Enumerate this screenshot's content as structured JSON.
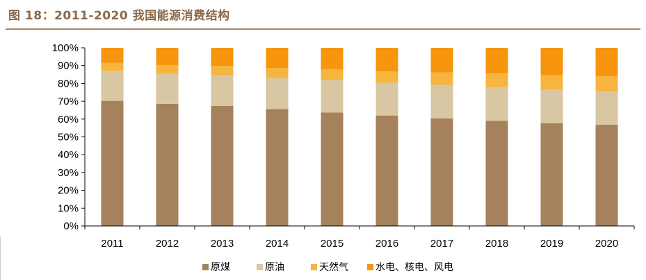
{
  "title": "图 18：2011-2020 我国能源消费结构",
  "chart_data": {
    "type": "bar",
    "stacked": true,
    "title": "图 18：2011-2020 我国能源消费结构",
    "xlabel": "",
    "ylabel": "",
    "ylim": [
      0,
      100
    ],
    "yticks": [
      "0%",
      "10%",
      "20%",
      "30%",
      "40%",
      "50%",
      "60%",
      "70%",
      "80%",
      "90%",
      "100%"
    ],
    "categories": [
      "2011",
      "2012",
      "2013",
      "2014",
      "2015",
      "2016",
      "2017",
      "2018",
      "2019",
      "2020"
    ],
    "legend_position": "bottom",
    "grid": false,
    "series": [
      {
        "name": "原煤",
        "color": "#a5825b",
        "values": [
          70.2,
          68.5,
          67.4,
          65.6,
          63.7,
          62.0,
          60.4,
          59.0,
          57.7,
          56.8
        ]
      },
      {
        "name": "原油",
        "color": "#d9c6a2",
        "values": [
          16.8,
          17.0,
          17.1,
          17.4,
          18.3,
          18.5,
          18.8,
          18.9,
          18.9,
          18.9
        ]
      },
      {
        "name": "天然气",
        "color": "#f5b53f",
        "values": [
          4.6,
          4.8,
          5.3,
          5.7,
          5.9,
          6.2,
          7.0,
          7.8,
          8.0,
          8.4
        ]
      },
      {
        "name": "水电、核电、风电",
        "color": "#f7950e",
        "values": [
          8.4,
          9.7,
          10.2,
          11.3,
          12.1,
          13.3,
          13.8,
          14.3,
          15.4,
          15.9
        ]
      }
    ]
  }
}
